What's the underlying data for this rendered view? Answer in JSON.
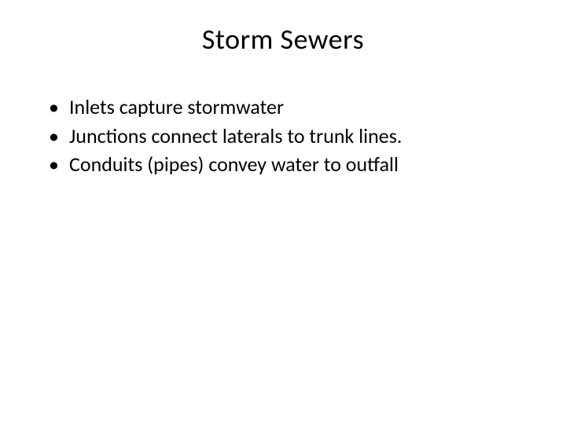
{
  "slide": {
    "title": "Storm Sewers",
    "title_fontsize": 36,
    "bullets": [
      "Inlets capture stormwater",
      "Junctions connect laterals to trunk lines.",
      "Conduits (pipes) convey water to outfall"
    ],
    "bullet_fontsize": 26,
    "text_color": "#000000",
    "background_color": "#ffffff"
  }
}
